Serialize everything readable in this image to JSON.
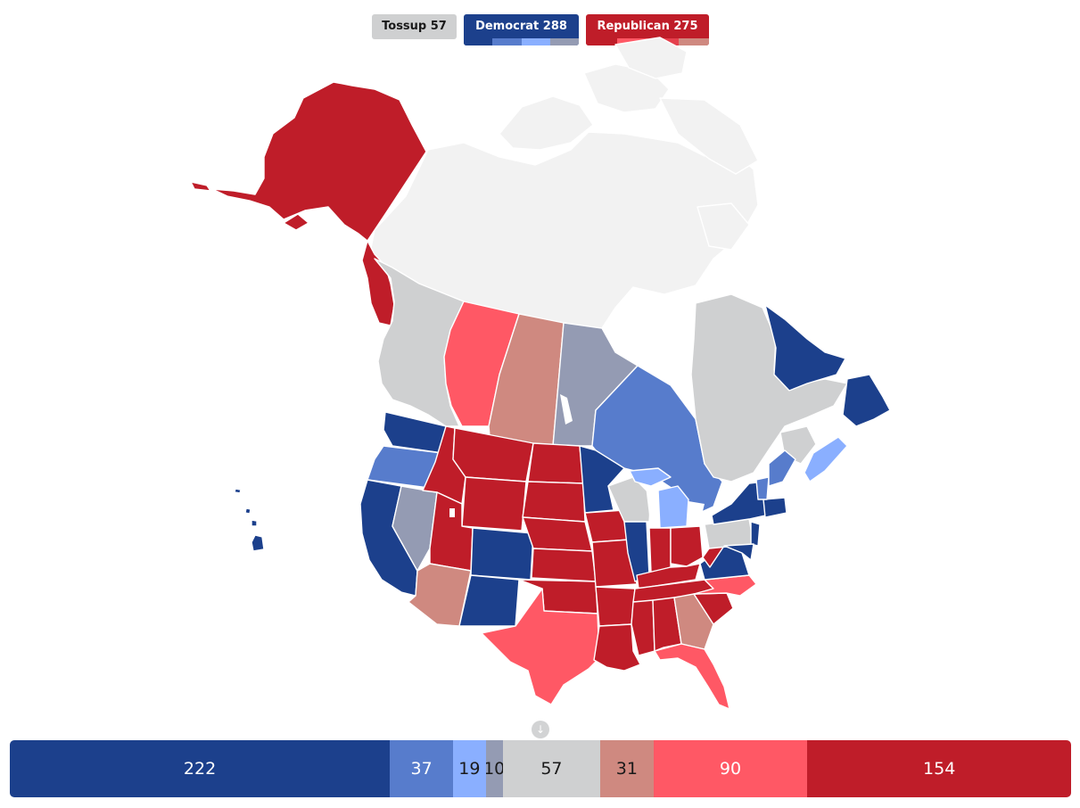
{
  "legend": {
    "tossup": {
      "label": "Tossup 57"
    },
    "democrat": {
      "label": "Democrat 288"
    },
    "republican": {
      "label": "Republican 275"
    }
  },
  "colors": {
    "dem_safe": "#1c408c",
    "dem_likely": "#577ccc",
    "dem_lean": "#8aafff",
    "dem_tilt": "#949bb3",
    "tossup": "#cfd0d1",
    "rep_tilt": "#cf8980",
    "rep_lean": "#ff5865",
    "rep_likely": "#ff5865",
    "rep_safe": "#bf1d29",
    "unassigned": "#f2f2f2",
    "border": "#ffffff"
  },
  "scroll_handle": {
    "icon": "arrow-down-icon",
    "glyph": "↓"
  },
  "seat_bar": [
    {
      "name": "dem-safe",
      "value": "222",
      "seats": 222,
      "color": "#1c408c",
      "text_color": "#ffffff"
    },
    {
      "name": "dem-likely",
      "value": "37",
      "seats": 37,
      "color": "#577ccc",
      "text_color": "#ffffff"
    },
    {
      "name": "dem-lean",
      "value": "19",
      "seats": 19,
      "color": "#8aafff",
      "text_color": "#1a1a1a"
    },
    {
      "name": "dem-tilt",
      "value": "10",
      "seats": 10,
      "color": "#949bb3",
      "text_color": "#1a1a1a"
    },
    {
      "name": "tossup",
      "value": "57",
      "seats": 57,
      "color": "#cfd0d1",
      "text_color": "#1a1a1a"
    },
    {
      "name": "rep-tilt",
      "value": "31",
      "seats": 31,
      "color": "#cf8980",
      "text_color": "#1a1a1a"
    },
    {
      "name": "rep-lean",
      "value": "90",
      "seats": 90,
      "color": "#ff5865",
      "text_color": "#ffffff"
    },
    {
      "name": "rep-safe",
      "value": "154",
      "seats": 154,
      "color": "#bf1d29",
      "text_color": "#ffffff"
    }
  ],
  "regions": [
    {
      "name": "alaska",
      "rating": "rep_safe"
    },
    {
      "name": "yukon-panhandle",
      "rating": "rep_safe"
    },
    {
      "name": "british-columbia",
      "rating": "tossup"
    },
    {
      "name": "alberta",
      "rating": "rep_lean"
    },
    {
      "name": "saskatchewan",
      "rating": "rep_tilt"
    },
    {
      "name": "manitoba",
      "rating": "dem_tilt"
    },
    {
      "name": "ontario",
      "rating": "dem_likely"
    },
    {
      "name": "quebec",
      "rating": "tossup"
    },
    {
      "name": "newfoundland-labrador",
      "rating": "dem_safe"
    },
    {
      "name": "new-brunswick",
      "rating": "tossup"
    },
    {
      "name": "nova-scotia",
      "rating": "dem_lean"
    },
    {
      "name": "washington",
      "rating": "dem_safe"
    },
    {
      "name": "oregon",
      "rating": "dem_likely"
    },
    {
      "name": "california",
      "rating": "dem_safe"
    },
    {
      "name": "nevada",
      "rating": "dem_tilt"
    },
    {
      "name": "idaho",
      "rating": "rep_safe"
    },
    {
      "name": "montana",
      "rating": "rep_safe"
    },
    {
      "name": "wyoming",
      "rating": "rep_safe"
    },
    {
      "name": "utah",
      "rating": "rep_safe"
    },
    {
      "name": "arizona",
      "rating": "rep_tilt"
    },
    {
      "name": "colorado",
      "rating": "dem_safe"
    },
    {
      "name": "new-mexico",
      "rating": "dem_safe"
    },
    {
      "name": "north-dakota",
      "rating": "rep_safe"
    },
    {
      "name": "south-dakota",
      "rating": "rep_safe"
    },
    {
      "name": "nebraska",
      "rating": "rep_safe"
    },
    {
      "name": "kansas",
      "rating": "rep_safe"
    },
    {
      "name": "oklahoma",
      "rating": "rep_safe"
    },
    {
      "name": "texas",
      "rating": "rep_lean"
    },
    {
      "name": "minnesota",
      "rating": "dem_safe"
    },
    {
      "name": "iowa",
      "rating": "rep_safe"
    },
    {
      "name": "missouri",
      "rating": "rep_safe"
    },
    {
      "name": "arkansas",
      "rating": "rep_safe"
    },
    {
      "name": "louisiana",
      "rating": "rep_safe"
    },
    {
      "name": "wisconsin",
      "rating": "tossup"
    },
    {
      "name": "michigan",
      "rating": "dem_lean"
    },
    {
      "name": "illinois",
      "rating": "dem_safe"
    },
    {
      "name": "indiana",
      "rating": "rep_safe"
    },
    {
      "name": "ohio",
      "rating": "rep_safe"
    },
    {
      "name": "kentucky",
      "rating": "rep_safe"
    },
    {
      "name": "tennessee",
      "rating": "rep_safe"
    },
    {
      "name": "mississippi",
      "rating": "rep_safe"
    },
    {
      "name": "alabama",
      "rating": "rep_safe"
    },
    {
      "name": "georgia",
      "rating": "rep_tilt"
    },
    {
      "name": "florida",
      "rating": "rep_lean"
    },
    {
      "name": "south-carolina",
      "rating": "rep_safe"
    },
    {
      "name": "north-carolina",
      "rating": "rep_lean"
    },
    {
      "name": "virginia",
      "rating": "dem_safe"
    },
    {
      "name": "west-virginia",
      "rating": "rep_safe"
    },
    {
      "name": "pennsylvania",
      "rating": "tossup"
    },
    {
      "name": "new-york",
      "rating": "dem_safe"
    },
    {
      "name": "new-jersey",
      "rating": "dem_safe"
    },
    {
      "name": "maryland-delaware",
      "rating": "dem_safe"
    },
    {
      "name": "new-england-south",
      "rating": "dem_safe"
    },
    {
      "name": "new-hampshire",
      "rating": "dem_likely"
    },
    {
      "name": "maine",
      "rating": "dem_likely"
    },
    {
      "name": "hawaii",
      "rating": "dem_safe"
    },
    {
      "name": "northern-canada",
      "rating": "unassigned"
    }
  ]
}
